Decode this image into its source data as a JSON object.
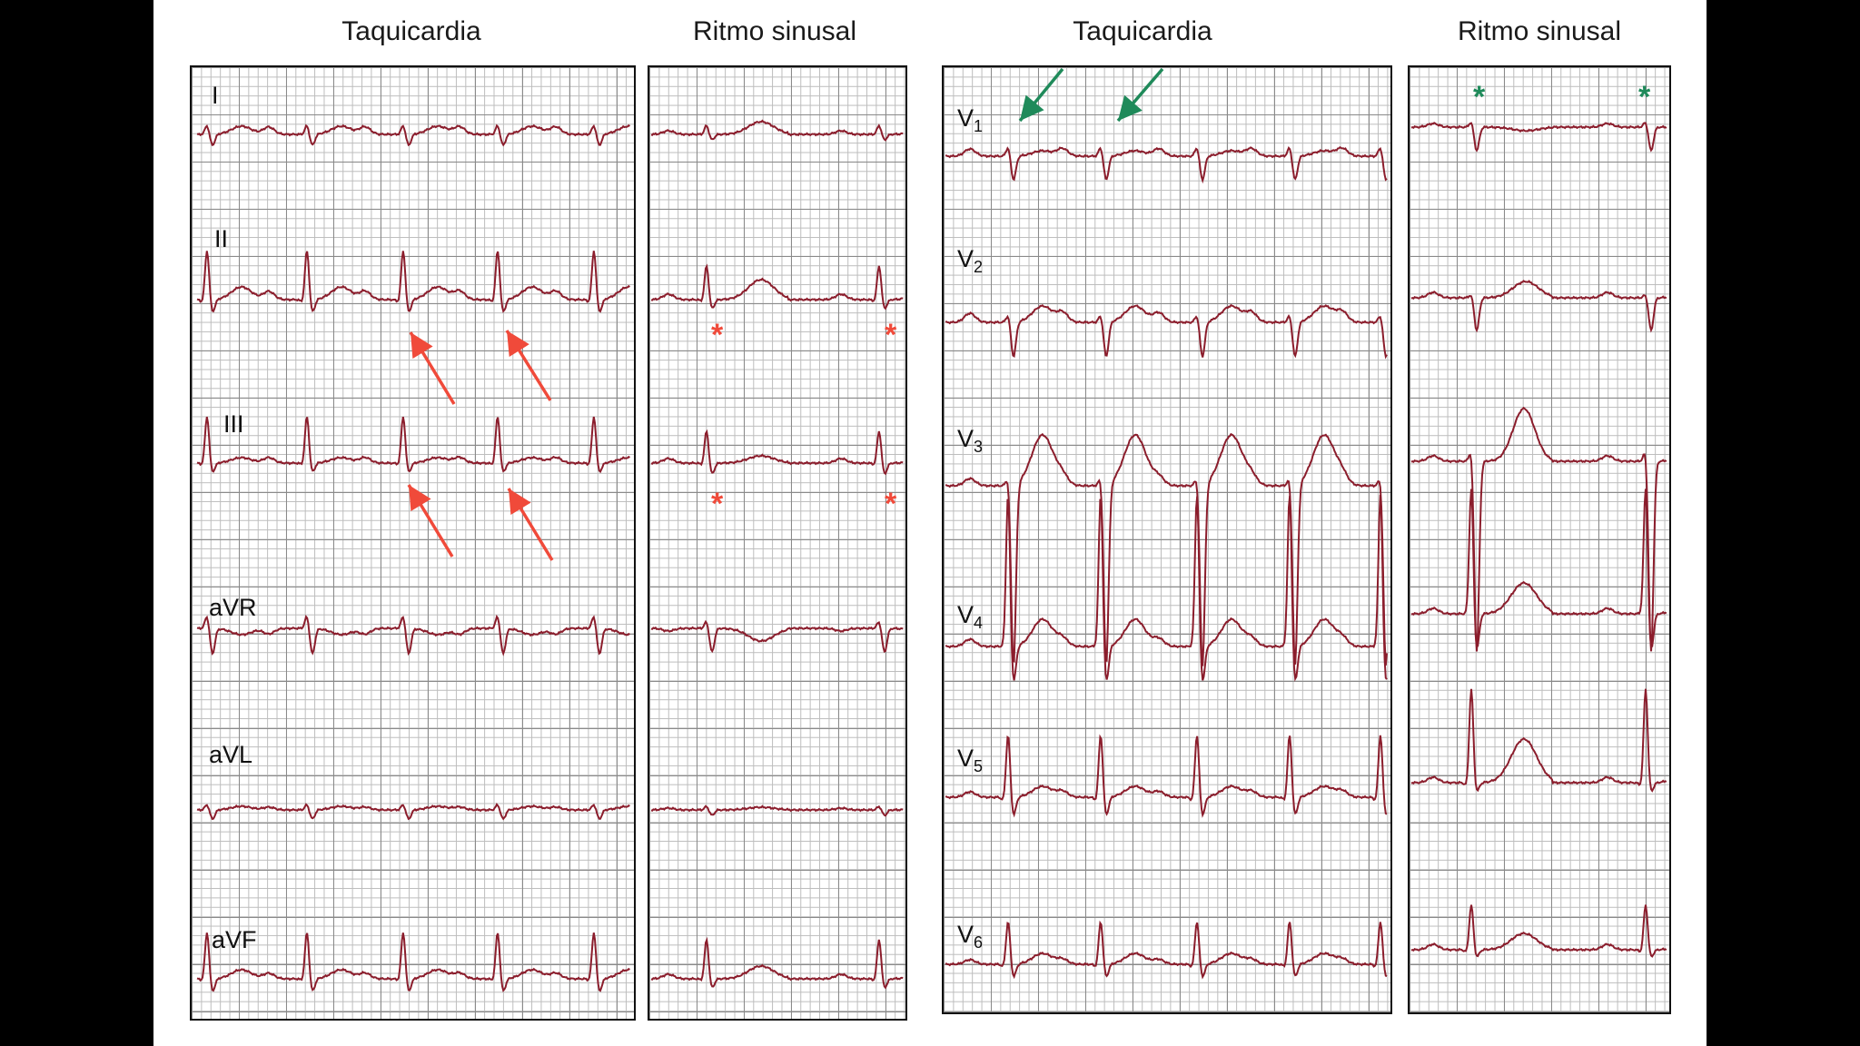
{
  "slide": {
    "titles": [
      "Taquicardia",
      "Ritmo sinusal",
      "Taquicardia",
      "Ritmo sinusal"
    ],
    "leads_limb": [
      "I",
      "II",
      "III",
      "aVR",
      "aVL",
      "aVF"
    ],
    "leads_precordial": [
      {
        "letter": "V",
        "sub": "1"
      },
      {
        "letter": "V",
        "sub": "2"
      },
      {
        "letter": "V",
        "sub": "3"
      },
      {
        "letter": "V",
        "sub": "4"
      },
      {
        "letter": "V",
        "sub": "5"
      },
      {
        "letter": "V",
        "sub": "6"
      }
    ],
    "marker_symbol": "*"
  },
  "colors": {
    "trace": "#8b1d2c",
    "grid_minor": "#bdbdbd",
    "grid_major": "#8a8a8a",
    "red_marker": "#f04a3a",
    "green_marker": "#1f8a5a"
  }
}
